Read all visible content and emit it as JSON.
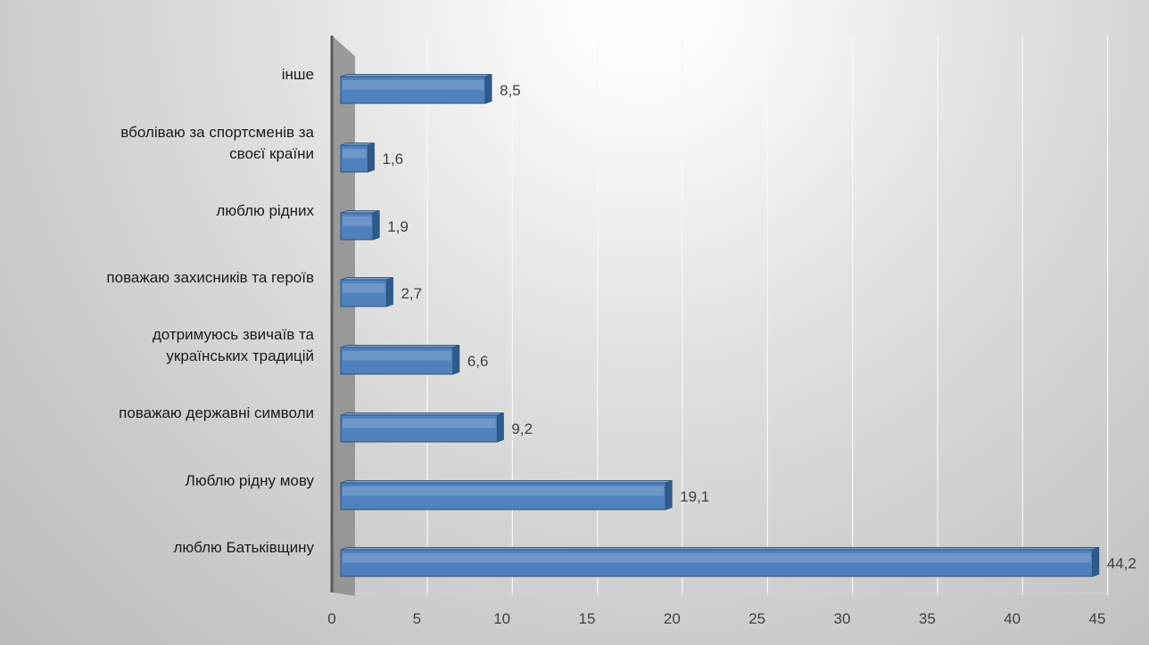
{
  "chart_data": {
    "type": "bar",
    "orientation": "horizontal",
    "style": "3d",
    "categories": [
      [
        "люблю Батьківщину"
      ],
      [
        "Люблю рідну мову"
      ],
      [
        "поважаю державні символи"
      ],
      [
        "дотримуюсь звичаїв та",
        "українських традицій"
      ],
      [
        "поважаю захисників та героїв"
      ],
      [
        "люблю рідних"
      ],
      [
        "вболіваю за спортсменів за",
        "своєї країни"
      ],
      [
        "інше"
      ]
    ],
    "values": [
      44.2,
      19.1,
      9.2,
      6.6,
      2.7,
      1.9,
      1.6,
      8.5
    ],
    "value_labels": [
      "44,2",
      "19,1",
      "9,2",
      "6,6",
      "2,7",
      "1,9",
      "1,6",
      "8,5"
    ],
    "xlim": [
      0,
      45
    ],
    "xticks": [
      0,
      5,
      10,
      15,
      20,
      25,
      30,
      35,
      40,
      45
    ],
    "grid": true,
    "legend": "none",
    "colors": {
      "bar_face": "#4f81bd",
      "bar_top": "#7aa1d2",
      "bar_end": "#2f5a8c",
      "bar_edge": "#2c4f7c",
      "grid": "#f7f7f7",
      "wall": "#8c8c8c"
    }
  }
}
